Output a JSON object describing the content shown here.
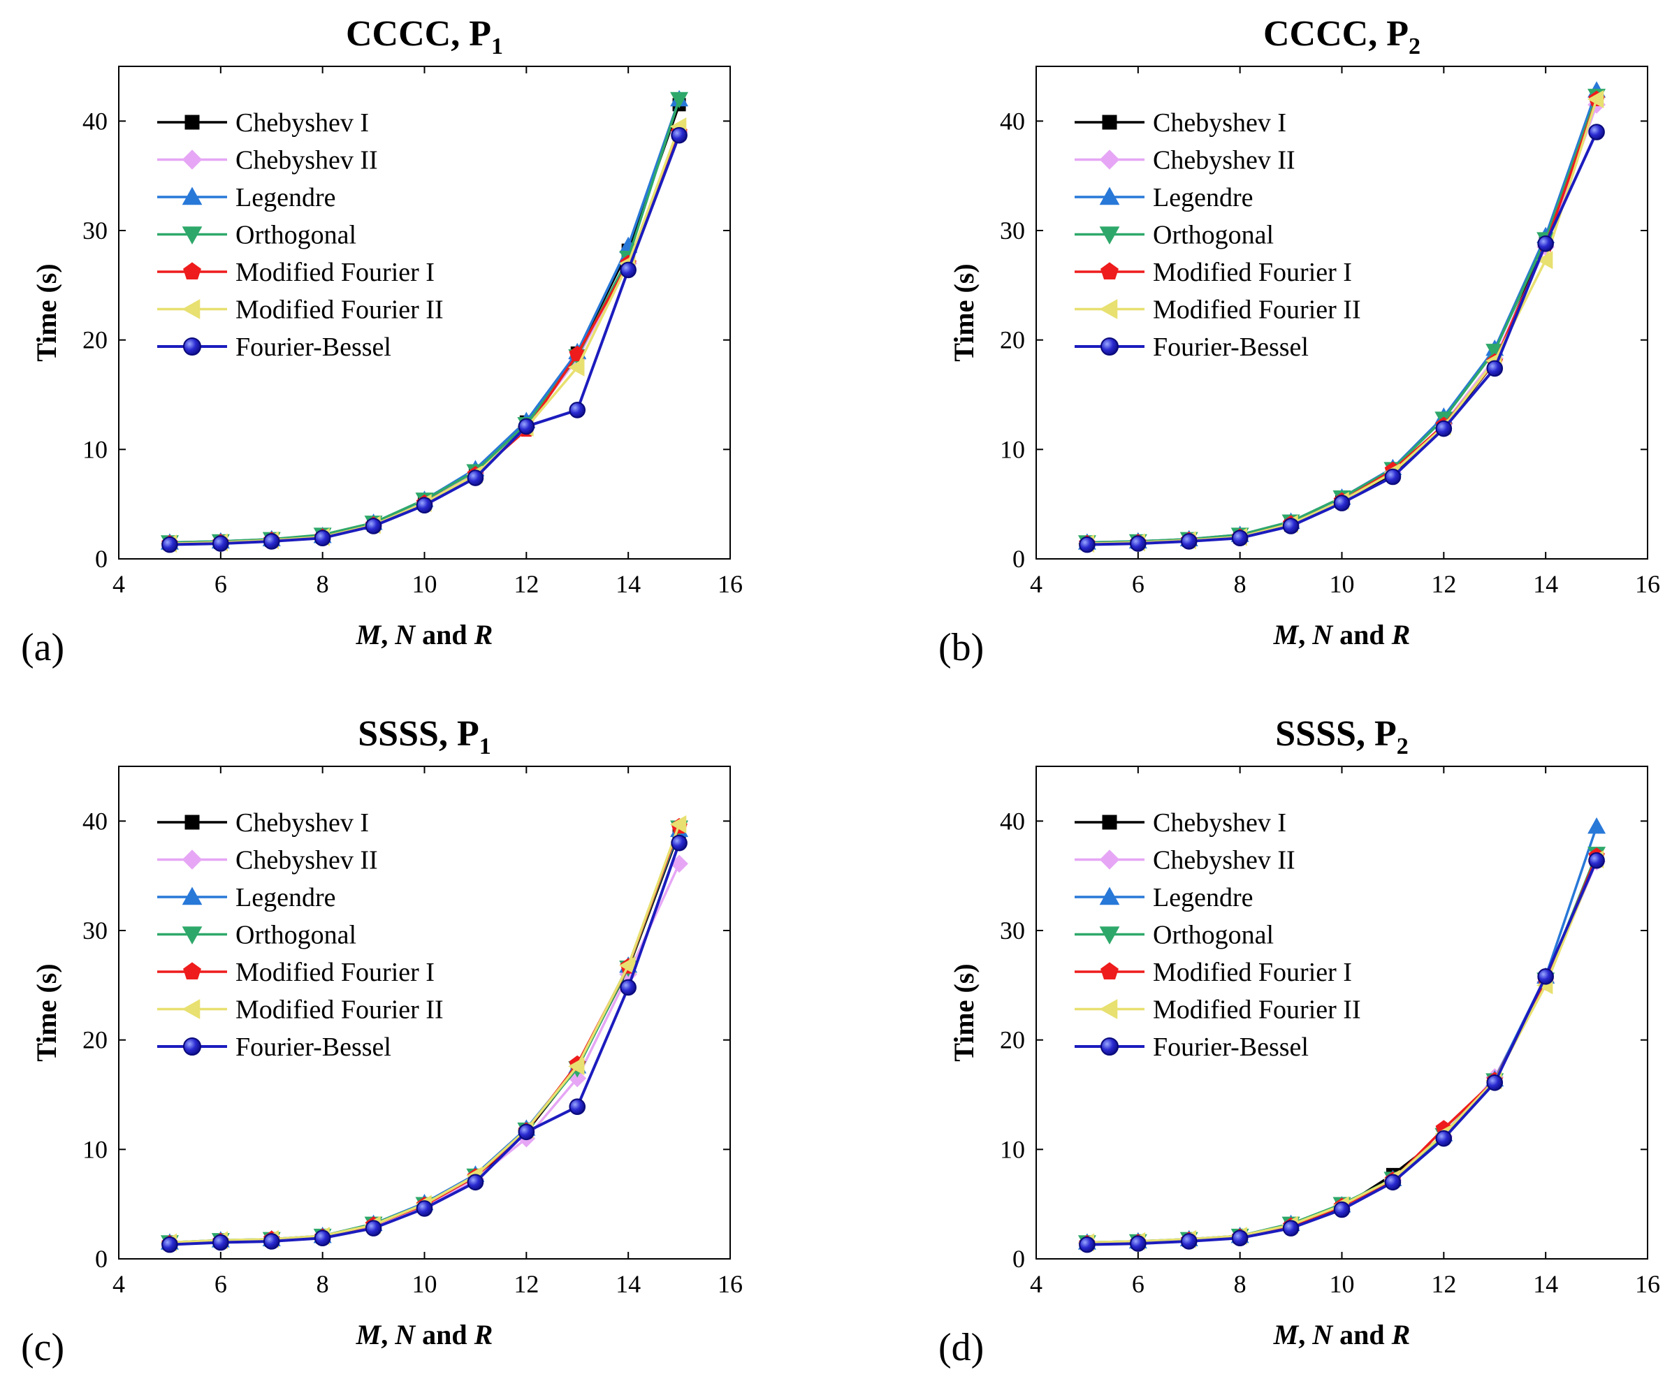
{
  "chart_data": [
    {
      "type": "line",
      "panel_label": "(a)",
      "title_main": "CCCC, P",
      "title_sub": "1",
      "xlabel_parts": [
        "M",
        ", ",
        "N",
        " and ",
        "R"
      ],
      "ylabel": "Time (s)",
      "xlim": [
        4,
        16
      ],
      "ylim": [
        0,
        45
      ],
      "xticks": [
        4,
        6,
        8,
        10,
        12,
        14,
        16
      ],
      "yticks": [
        0,
        10,
        20,
        30,
        40
      ],
      "legend_position": "top-left",
      "x": [
        5,
        6,
        7,
        8,
        9,
        10,
        11,
        12,
        13,
        14,
        15
      ],
      "series": [
        {
          "name": "Chebyshev I",
          "color": "#000000",
          "marker": "square",
          "values": [
            1.4,
            1.5,
            1.7,
            2.0,
            3.1,
            5.1,
            7.9,
            12.5,
            18.8,
            28.2,
            41.5
          ]
        },
        {
          "name": "Chebyshev II",
          "color": "#e6a6f5",
          "marker": "diamond",
          "values": [
            1.4,
            1.5,
            1.7,
            2.0,
            3.1,
            5.1,
            7.8,
            12.1,
            18.3,
            27.0,
            39.0
          ]
        },
        {
          "name": "Legendre",
          "color": "#2878d8",
          "marker": "triangle-up",
          "values": [
            1.5,
            1.6,
            1.8,
            2.1,
            3.3,
            5.4,
            8.2,
            12.6,
            18.9,
            28.6,
            42.0
          ]
        },
        {
          "name": "Orthogonal",
          "color": "#2ea86a",
          "marker": "triangle-down",
          "values": [
            1.5,
            1.6,
            1.8,
            2.2,
            3.3,
            5.4,
            8.0,
            12.3,
            18.5,
            27.5,
            42.0
          ]
        },
        {
          "name": "Modified Fourier I",
          "color": "#ee1c1c",
          "marker": "pentagon",
          "values": [
            1.4,
            1.5,
            1.7,
            2.0,
            3.1,
            5.1,
            7.7,
            11.8,
            18.7,
            27.0,
            39.0
          ]
        },
        {
          "name": "Modified Fourier II",
          "color": "#e8e070",
          "marker": "triangle-left",
          "values": [
            1.4,
            1.5,
            1.7,
            2.0,
            3.1,
            5.1,
            7.7,
            12.0,
            17.5,
            27.0,
            39.5
          ]
        },
        {
          "name": "Fourier-Bessel",
          "color": "#1c1cbe",
          "marker": "circle",
          "values": [
            1.3,
            1.4,
            1.6,
            1.9,
            3.0,
            4.9,
            7.4,
            12.1,
            13.6,
            26.4,
            38.7
          ]
        }
      ]
    },
    {
      "type": "line",
      "panel_label": "(b)",
      "title_main": "CCCC, P",
      "title_sub": "2",
      "xlabel_parts": [
        "M",
        ", ",
        "N",
        " and ",
        "R"
      ],
      "ylabel": "Time (s)",
      "xlim": [
        4,
        16
      ],
      "ylim": [
        0,
        45
      ],
      "xticks": [
        4,
        6,
        8,
        10,
        12,
        14,
        16
      ],
      "yticks": [
        0,
        10,
        20,
        30,
        40
      ],
      "legend_position": "top-left",
      "x": [
        5,
        6,
        7,
        8,
        9,
        10,
        11,
        12,
        13,
        14,
        15
      ],
      "series": [
        {
          "name": "Chebyshev I",
          "color": "#000000",
          "marker": "square",
          "values": [
            1.4,
            1.5,
            1.7,
            2.0,
            3.1,
            5.2,
            7.8,
            12.0,
            18.0,
            29.0,
            42.0
          ]
        },
        {
          "name": "Chebyshev II",
          "color": "#e6a6f5",
          "marker": "diamond",
          "values": [
            1.4,
            1.5,
            1.7,
            2.0,
            3.2,
            5.3,
            7.9,
            12.3,
            18.3,
            28.5,
            41.5
          ]
        },
        {
          "name": "Legendre",
          "color": "#2878d8",
          "marker": "triangle-up",
          "values": [
            1.5,
            1.6,
            1.8,
            2.2,
            3.4,
            5.6,
            8.3,
            13.0,
            19.2,
            29.5,
            42.8
          ]
        },
        {
          "name": "Orthogonal",
          "color": "#2ea86a",
          "marker": "triangle-down",
          "values": [
            1.5,
            1.6,
            1.8,
            2.2,
            3.4,
            5.6,
            8.2,
            12.8,
            19.0,
            29.2,
            42.3
          ]
        },
        {
          "name": "Modified Fourier I",
          "color": "#ee1c1c",
          "marker": "pentagon",
          "values": [
            1.4,
            1.5,
            1.7,
            2.0,
            3.2,
            5.3,
            8.1,
            12.2,
            18.0,
            28.7,
            42.0
          ]
        },
        {
          "name": "Modified Fourier II",
          "color": "#e8e070",
          "marker": "triangle-left",
          "values": [
            1.4,
            1.5,
            1.7,
            2.0,
            3.2,
            5.3,
            7.9,
            12.1,
            18.1,
            27.3,
            42.0
          ]
        },
        {
          "name": "Fourier-Bessel",
          "color": "#1c1cbe",
          "marker": "circle",
          "values": [
            1.3,
            1.4,
            1.6,
            1.9,
            3.0,
            5.1,
            7.5,
            11.9,
            17.4,
            28.8,
            39.0
          ]
        }
      ]
    },
    {
      "type": "line",
      "panel_label": "(c)",
      "title_main": "SSSS, P",
      "title_sub": "1",
      "xlabel_parts": [
        "M",
        ", ",
        "N",
        " and ",
        "R"
      ],
      "ylabel": "Time (s)",
      "xlim": [
        4,
        16
      ],
      "ylim": [
        0,
        45
      ],
      "xticks": [
        4,
        6,
        8,
        10,
        12,
        14,
        16
      ],
      "yticks": [
        0,
        10,
        20,
        30,
        40
      ],
      "legend_position": "top-left",
      "x": [
        5,
        6,
        7,
        8,
        9,
        10,
        11,
        12,
        13,
        14,
        15
      ],
      "series": [
        {
          "name": "Chebyshev I",
          "color": "#000000",
          "marker": "square",
          "values": [
            1.4,
            1.6,
            1.7,
            2.0,
            3.0,
            4.8,
            7.4,
            11.6,
            17.5,
            26.5,
            39.0
          ]
        },
        {
          "name": "Chebyshev II",
          "color": "#e6a6f5",
          "marker": "diamond",
          "values": [
            1.4,
            1.6,
            1.7,
            2.0,
            3.0,
            4.8,
            7.3,
            11.0,
            16.5,
            26.0,
            36.1
          ]
        },
        {
          "name": "Legendre",
          "color": "#2878d8",
          "marker": "triangle-up",
          "values": [
            1.5,
            1.7,
            1.8,
            2.1,
            3.2,
            5.1,
            7.7,
            11.9,
            17.6,
            26.8,
            39.2
          ]
        },
        {
          "name": "Orthogonal",
          "color": "#2ea86a",
          "marker": "triangle-down",
          "values": [
            1.5,
            1.7,
            1.8,
            2.1,
            3.2,
            5.0,
            7.6,
            11.8,
            17.4,
            26.6,
            39.4
          ]
        },
        {
          "name": "Modified Fourier I",
          "color": "#ee1c1c",
          "marker": "pentagon",
          "values": [
            1.4,
            1.6,
            1.8,
            2.0,
            3.1,
            4.9,
            7.5,
            11.7,
            17.8,
            26.7,
            39.5
          ]
        },
        {
          "name": "Modified Fourier II",
          "color": "#e8e070",
          "marker": "triangle-left",
          "values": [
            1.5,
            1.7,
            1.8,
            2.1,
            3.1,
            5.0,
            7.6,
            11.8,
            17.6,
            26.8,
            39.7
          ]
        },
        {
          "name": "Fourier-Bessel",
          "color": "#1c1cbe",
          "marker": "circle",
          "values": [
            1.3,
            1.5,
            1.6,
            1.9,
            2.8,
            4.6,
            7.0,
            11.6,
            13.9,
            24.8,
            38.0
          ]
        }
      ]
    },
    {
      "type": "line",
      "panel_label": "(d)",
      "title_main": "SSSS, P",
      "title_sub": "2",
      "xlabel_parts": [
        "M",
        ", ",
        "N",
        " and ",
        "R"
      ],
      "ylabel": "Time (s)",
      "xlim": [
        4,
        16
      ],
      "ylim": [
        0,
        45
      ],
      "xticks": [
        4,
        6,
        8,
        10,
        12,
        14,
        16
      ],
      "yticks": [
        0,
        10,
        20,
        30,
        40
      ],
      "legend_position": "top-left",
      "x": [
        5,
        6,
        7,
        8,
        9,
        10,
        11,
        12,
        13,
        14,
        15
      ],
      "series": [
        {
          "name": "Chebyshev I",
          "color": "#000000",
          "marker": "square",
          "values": [
            1.4,
            1.5,
            1.7,
            2.0,
            3.0,
            4.7,
            7.7,
            11.3,
            16.3,
            25.5,
            36.5
          ]
        },
        {
          "name": "Chebyshev II",
          "color": "#e6a6f5",
          "marker": "diamond",
          "values": [
            1.4,
            1.5,
            1.7,
            2.0,
            3.0,
            4.8,
            7.2,
            11.2,
            16.6,
            25.3,
            36.3
          ]
        },
        {
          "name": "Legendre",
          "color": "#2878d8",
          "marker": "triangle-up",
          "values": [
            1.5,
            1.6,
            1.8,
            2.1,
            3.2,
            4.9,
            7.3,
            11.4,
            16.4,
            25.8,
            39.5
          ]
        },
        {
          "name": "Orthogonal",
          "color": "#2ea86a",
          "marker": "triangle-down",
          "values": [
            1.5,
            1.6,
            1.8,
            2.1,
            3.2,
            5.0,
            7.3,
            11.3,
            16.3,
            25.5,
            37.0
          ]
        },
        {
          "name": "Modified Fourier I",
          "color": "#ee1c1c",
          "marker": "pentagon",
          "values": [
            1.4,
            1.5,
            1.7,
            2.0,
            3.0,
            4.8,
            7.2,
            11.9,
            16.3,
            25.4,
            36.8
          ]
        },
        {
          "name": "Modified Fourier II",
          "color": "#e8e070",
          "marker": "triangle-left",
          "values": [
            1.5,
            1.6,
            1.8,
            2.1,
            3.1,
            4.9,
            7.3,
            11.4,
            16.3,
            25.0,
            36.5
          ]
        },
        {
          "name": "Fourier-Bessel",
          "color": "#1c1cbe",
          "marker": "circle",
          "values": [
            1.3,
            1.4,
            1.6,
            1.9,
            2.8,
            4.5,
            7.0,
            11.0,
            16.1,
            25.8,
            36.4
          ]
        }
      ]
    }
  ]
}
